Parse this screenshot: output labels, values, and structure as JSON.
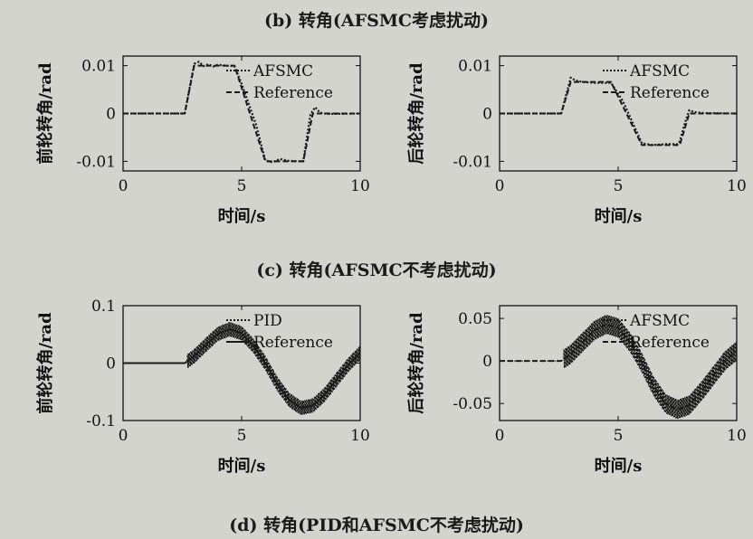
{
  "captions": {
    "b": "(b) 转角(AFSMC考虑扰动)",
    "c": "(c) 转角(AFSMC不考虑扰动)",
    "d": "(d) 转角(PID和AFSMC不考虑扰动)"
  },
  "colors": {
    "background": "#d4d4cf",
    "line": "#1a1a1a"
  },
  "chart_data": [
    {
      "type": "line",
      "xlabel": "时间/s",
      "ylabel": "前轮转角/rad",
      "xlim": [
        0,
        10
      ],
      "ylim": [
        -0.012,
        0.012
      ],
      "xticks": [
        0,
        5,
        10
      ],
      "yticks": [
        0.01,
        0,
        -0.01
      ],
      "ytick_labels": [
        "0.01",
        "0",
        "-0.01"
      ],
      "legend_position": "top-right",
      "series": [
        {
          "name": "AFSMC",
          "style": "dotted",
          "x": [
            0,
            2.6,
            3.0,
            3.2,
            3.4,
            3.6,
            3.8,
            4.0,
            4.3,
            4.7,
            5.0,
            5.6,
            6.0,
            6.3,
            6.6,
            7.0,
            7.6,
            7.9,
            8.1,
            8.3,
            8.6,
            10
          ],
          "y": [
            0,
            0,
            0.0104,
            0.0108,
            0.0099,
            0.0103,
            0.0098,
            0.0102,
            0.01,
            0.0099,
            0.0062,
            -0.0022,
            -0.0098,
            -0.0102,
            -0.0095,
            -0.0099,
            -0.01,
            -0.0002,
            0.0013,
            0.0002,
            -0.0001,
            0
          ]
        },
        {
          "name": "Reference",
          "style": "dashed",
          "x": [
            0,
            2.6,
            3.0,
            4.7,
            6.0,
            7.6,
            8.0,
            10
          ],
          "y": [
            0,
            0,
            0.01,
            0.01,
            -0.01,
            -0.01,
            0,
            0
          ]
        }
      ]
    },
    {
      "type": "line",
      "xlabel": "时间/s",
      "ylabel": "后轮转角/rad",
      "xlim": [
        0,
        10
      ],
      "ylim": [
        -0.012,
        0.012
      ],
      "xticks": [
        0,
        5,
        10
      ],
      "yticks": [
        0.01,
        0,
        -0.01
      ],
      "ytick_labels": [
        "0.01",
        "0",
        "-0.01"
      ],
      "legend_position": "top-right",
      "series": [
        {
          "name": "AFSMC",
          "style": "dotted",
          "x": [
            0,
            2.6,
            3.0,
            3.2,
            3.5,
            4.0,
            4.7,
            5.2,
            5.6,
            6.0,
            6.4,
            7.0,
            7.5,
            7.6,
            7.8,
            8.0,
            8.2,
            8.6,
            10
          ],
          "y": [
            0,
            0,
            0.0075,
            0.0069,
            0.0066,
            0.0064,
            0.0064,
            0.0026,
            -0.0018,
            -0.0062,
            -0.0066,
            -0.0064,
            -0.0064,
            -0.0058,
            -0.0022,
            0.0007,
            0.0003,
            0.0001,
            0
          ]
        },
        {
          "name": "Reference",
          "style": "dashed",
          "x": [
            0,
            2.6,
            3.0,
            4.7,
            6.0,
            7.6,
            8.0,
            10
          ],
          "y": [
            0,
            0,
            0.0066,
            0.0066,
            -0.0066,
            -0.0066,
            0,
            0
          ]
        }
      ]
    },
    {
      "type": "line",
      "xlabel": "时间/s",
      "ylabel": "前轮转角/rad",
      "xlim": [
        0,
        10
      ],
      "ylim": [
        -0.1,
        0.1
      ],
      "xticks": [
        0,
        5,
        10
      ],
      "yticks": [
        0.1,
        0,
        -0.1
      ],
      "ytick_labels": [
        "0.1",
        "0",
        "-0.1"
      ],
      "legend_position": "top-right",
      "series": [
        {
          "name": "PID",
          "style": "dotted",
          "oscillation": 0.012,
          "x": [
            0,
            2.6,
            3.0,
            3.5,
            4.0,
            4.5,
            5.0,
            5.5,
            6.0,
            6.5,
            7.0,
            7.5,
            8.0,
            8.5,
            9.0,
            9.5,
            10
          ],
          "y": [
            0,
            0,
            0.012,
            0.032,
            0.051,
            0.059,
            0.052,
            0.03,
            0.0,
            -0.036,
            -0.064,
            -0.078,
            -0.074,
            -0.055,
            -0.029,
            -0.003,
            0.018
          ]
        },
        {
          "name": "Reference",
          "style": "solid",
          "x": [
            0,
            2.6,
            3.0,
            3.5,
            4.0,
            4.5,
            5.0,
            5.5,
            6.0,
            6.5,
            7.0,
            7.5,
            8.0,
            8.5,
            9.0,
            9.5,
            10
          ],
          "y": [
            0,
            0,
            0.012,
            0.032,
            0.051,
            0.059,
            0.052,
            0.03,
            0.0,
            -0.036,
            -0.064,
            -0.078,
            -0.074,
            -0.055,
            -0.029,
            -0.003,
            0.018
          ]
        }
      ]
    },
    {
      "type": "line",
      "xlabel": "时间/s",
      "ylabel": "后轮转角/rad",
      "xlim": [
        0,
        10
      ],
      "ylim": [
        -0.07,
        0.065
      ],
      "xticks": [
        0,
        5,
        10
      ],
      "yticks": [
        0.05,
        0,
        -0.05
      ],
      "ytick_labels": [
        "0.05",
        "0",
        "-0.05"
      ],
      "legend_position": "top-right",
      "series": [
        {
          "name": "AFSMC",
          "style": "dotted",
          "oscillation": 0.011,
          "x": [
            0,
            2.6,
            3.0,
            3.5,
            4.0,
            4.5,
            5.0,
            5.5,
            6.0,
            6.5,
            7.0,
            7.5,
            8.0,
            8.5,
            9.0,
            9.5,
            10
          ],
          "y": [
            0,
            0,
            0.008,
            0.022,
            0.036,
            0.043,
            0.039,
            0.022,
            -0.002,
            -0.03,
            -0.05,
            -0.057,
            -0.052,
            -0.036,
            -0.018,
            0.0,
            0.012
          ]
        },
        {
          "name": "Reference",
          "style": "dashed",
          "x": [
            0,
            2.6,
            3.0,
            3.5,
            4.0,
            4.5,
            5.0,
            5.5,
            6.0,
            6.5,
            7.0,
            7.5,
            8.0,
            8.5,
            9.0,
            9.5,
            10
          ],
          "y": [
            0,
            0,
            0.008,
            0.022,
            0.036,
            0.043,
            0.039,
            0.022,
            -0.002,
            -0.03,
            -0.05,
            -0.057,
            -0.052,
            -0.036,
            -0.018,
            0.0,
            0.012
          ]
        }
      ]
    }
  ]
}
